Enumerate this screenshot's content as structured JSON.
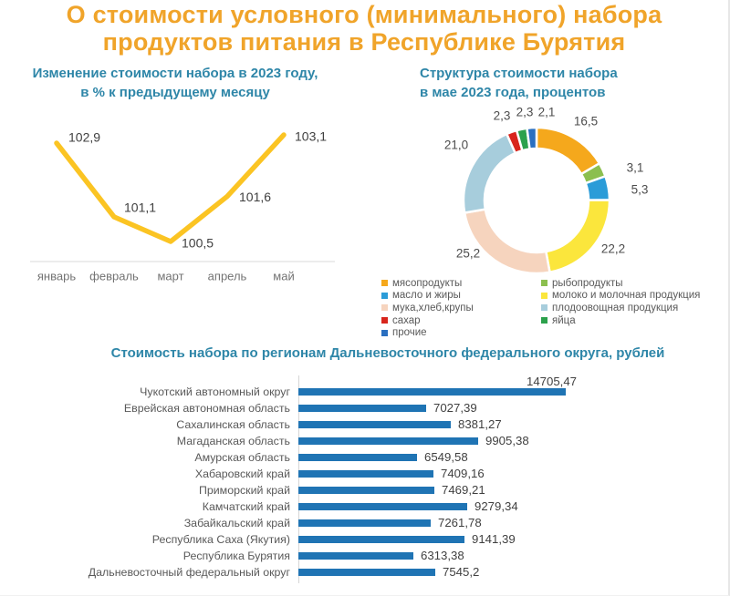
{
  "title": {
    "line1": "О стоимости условного (минимального) набора",
    "line2": "продуктов питания в Республике Бурятия"
  },
  "colors": {
    "title": "#F0A42A",
    "subtitle": "#2E86A8",
    "line": "#FBC423",
    "bar": "#1F74B4",
    "axis": "#D9D9D9",
    "value_label": "#404040",
    "category_label": "#595959",
    "month_label": "#737373",
    "legend_text": "#595959",
    "donut_label": "#4D4D4D"
  },
  "chart_data": [
    {
      "type": "line",
      "title_line1": "Изменение стоимости набора в 2023 году,",
      "title_line2": "в % к предыдущему месяцу",
      "categories": [
        "январь",
        "февраль",
        "март",
        "апрель",
        "май"
      ],
      "values": [
        102.9,
        101.1,
        100.5,
        101.6,
        103.1
      ],
      "value_labels": [
        "102,9",
        "101,1",
        "100,5",
        "101,6",
        "103,1"
      ],
      "ylim": [
        100,
        103.5
      ],
      "grid": false,
      "legend_position": "none"
    },
    {
      "type": "pie",
      "subtype": "donut",
      "title_line1": "Структура стоимости набора",
      "title_line2": "в мае 2023 года, процентов",
      "slices": [
        {
          "name": "мясопродукты",
          "value": 16.5,
          "label": "16,5",
          "color": "#F5A81C"
        },
        {
          "name": "рыбопродукты",
          "value": 3.1,
          "label": "3,1",
          "color": "#8CBF4F"
        },
        {
          "name": "масло и жиры",
          "value": 5.3,
          "label": "5,3",
          "color": "#2B9CD8"
        },
        {
          "name": "молоко и молочная продукция",
          "value": 22.2,
          "label": "22,2",
          "color": "#FBE63C"
        },
        {
          "name": "мука,хлеб,крупы",
          "value": 25.2,
          "label": "25,2",
          "color": "#F6D4BE"
        },
        {
          "name": "плодоовощная продукция",
          "value": 21.0,
          "label": "21,0",
          "color": "#A7CDDC"
        },
        {
          "name": "сахар",
          "value": 2.3,
          "label": "2,3",
          "color": "#D8251C"
        },
        {
          "name": "яйца",
          "value": 2.3,
          "label": "2,3",
          "color": "#2CA14C"
        },
        {
          "name": "прочие",
          "value": 2.1,
          "label": "2,1",
          "color": "#2A6FC0"
        }
      ],
      "legend_columns": [
        [
          0,
          2,
          4,
          6,
          8
        ],
        [
          1,
          3,
          5,
          7
        ]
      ],
      "legend_position": "bottom"
    },
    {
      "type": "bar",
      "orientation": "horizontal",
      "title": "Стоимость набора по регионам Дальневосточного федерального округа, рублей",
      "categories": [
        "Чукотский автономный округ",
        "Еврейская автономная область",
        "Сахалинская область",
        "Магаданская область",
        "Амурская область",
        "Хабаровский край",
        "Приморский край",
        "Камчатский край",
        "Забайкальский край",
        "Республика Саха (Якутия)",
        "Республика Бурятия",
        "Дальневосточный федеральный округ"
      ],
      "values": [
        14705.47,
        7027.39,
        8381.27,
        9905.38,
        6549.58,
        7409.16,
        7469.21,
        9279.34,
        7261.78,
        9141.39,
        6313.38,
        7545.2
      ],
      "value_labels": [
        "14705,47",
        "7027,39",
        "8381,27",
        "9905,38",
        "6549,58",
        "7409,16",
        "7469,21",
        "9279,34",
        "7261,78",
        "9141,39",
        "6313,38",
        "7545,2"
      ]
    }
  ]
}
